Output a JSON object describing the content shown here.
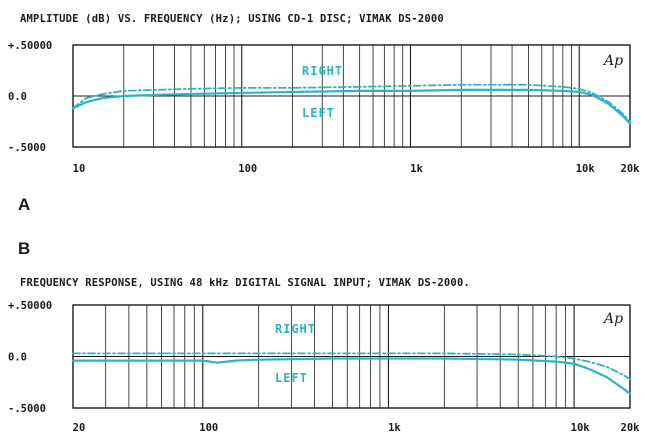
{
  "chart_data": [
    {
      "type": "line",
      "title": "AMPLITUDE (dB) VS. FREQUENCY (Hz); USING CD-1 DISC; VIMAK DS-2000",
      "panel_label": "A",
      "logo": "Ap",
      "xscale": "log",
      "xlim": [
        10,
        20000
      ],
      "ylim": [
        -0.5,
        0.5
      ],
      "xtick_values": [
        10,
        100,
        1000,
        10000,
        20000
      ],
      "xtick_labels": [
        "10",
        "100",
        "1k",
        "10k",
        "20k"
      ],
      "ytick_values": [
        0.5,
        0.0,
        -0.5
      ],
      "ytick_labels": [
        "+.50000",
        "0.0",
        "-.5000"
      ],
      "grid": true,
      "series": [
        {
          "name": "RIGHT",
          "color": "#2bb3c8",
          "style": "dash-dot",
          "x": [
            10,
            12,
            15,
            20,
            30,
            50,
            100,
            200,
            500,
            1000,
            2000,
            5000,
            8000,
            10000,
            12000,
            15000,
            18000,
            20000
          ],
          "y": [
            -0.12,
            -0.02,
            0.02,
            0.05,
            0.06,
            0.07,
            0.08,
            0.08,
            0.09,
            0.1,
            0.11,
            0.11,
            0.09,
            0.07,
            0.03,
            -0.06,
            -0.17,
            -0.25
          ]
        },
        {
          "name": "LEFT",
          "color": "#2bb3c8",
          "style": "solid",
          "x": [
            10,
            12,
            15,
            20,
            30,
            50,
            100,
            200,
            500,
            1000,
            2000,
            5000,
            8000,
            10000,
            12000,
            15000,
            18000,
            20000
          ],
          "y": [
            -0.12,
            -0.06,
            -0.02,
            0.0,
            0.01,
            0.02,
            0.03,
            0.04,
            0.05,
            0.05,
            0.06,
            0.06,
            0.05,
            0.04,
            0.01,
            -0.08,
            -0.19,
            -0.27
          ]
        }
      ]
    },
    {
      "type": "line",
      "title": "FREQUENCY RESPONSE, USING 48 kHz DIGITAL SIGNAL INPUT; VIMAK DS-2000.",
      "panel_label": "B",
      "logo": "Ap",
      "xscale": "log",
      "xlim": [
        20,
        20000
      ],
      "ylim": [
        -0.5,
        0.5
      ],
      "xtick_values": [
        20,
        100,
        1000,
        10000,
        20000
      ],
      "xtick_labels": [
        "20",
        "100",
        "1k",
        "10k",
        "20k"
      ],
      "ytick_values": [
        0.5,
        0.0,
        -0.5
      ],
      "ytick_labels": [
        "+.50000",
        "0.0",
        "-.5000"
      ],
      "grid": true,
      "series": [
        {
          "name": "RIGHT",
          "color": "#2bb3c8",
          "style": "dash-dot",
          "x": [
            20,
            50,
            100,
            200,
            500,
            1000,
            2000,
            5000,
            8000,
            10000,
            12000,
            15000,
            18000,
            20000
          ],
          "y": [
            0.03,
            0.03,
            0.03,
            0.03,
            0.03,
            0.03,
            0.03,
            0.02,
            0.0,
            -0.02,
            -0.05,
            -0.1,
            -0.17,
            -0.22
          ]
        },
        {
          "name": "LEFT",
          "color": "#2bb3c8",
          "style": "solid",
          "x": [
            20,
            50,
            100,
            120,
            150,
            200,
            500,
            1000,
            2000,
            5000,
            8000,
            10000,
            12000,
            15000,
            18000,
            20000
          ],
          "y": [
            -0.04,
            -0.04,
            -0.04,
            -0.06,
            -0.04,
            -0.03,
            -0.02,
            -0.02,
            -0.02,
            -0.03,
            -0.05,
            -0.07,
            -0.12,
            -0.2,
            -0.3,
            -0.36
          ]
        }
      ]
    }
  ]
}
